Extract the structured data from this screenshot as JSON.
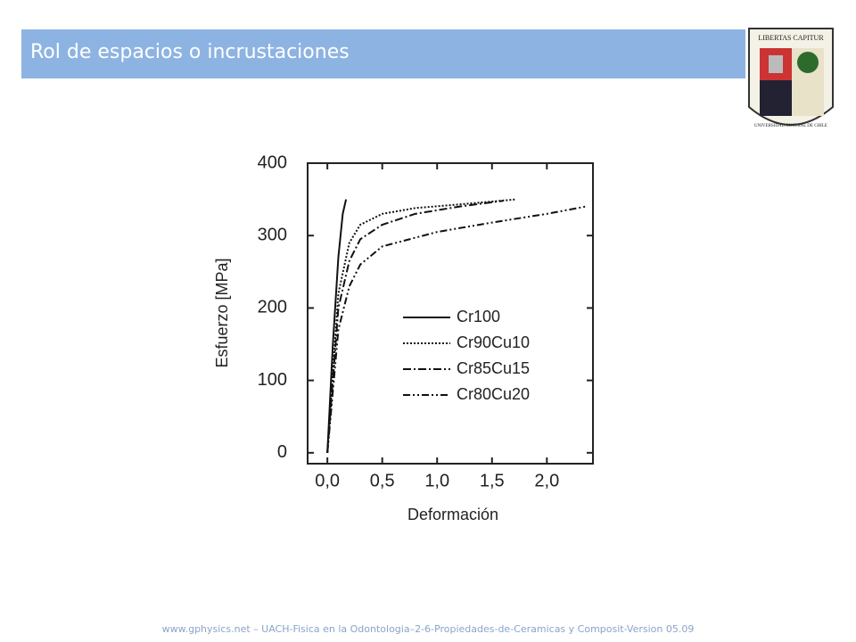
{
  "header": {
    "title": "Rol de espacios o incrustaciones"
  },
  "logo": {
    "motto": "LIBERTAS CAPITUR",
    "name": "UNIVERSIDAD AUSTRAL DE CHILE"
  },
  "chart_data": {
    "type": "line",
    "xlabel": "Deformación",
    "ylabel": "Esfuerzo [MPa]",
    "xlim": [
      -0.18,
      2.42
    ],
    "ylim": [
      -15,
      400
    ],
    "xticks": [
      {
        "value": 0,
        "label": "0,0"
      },
      {
        "value": 0.5,
        "label": "0,5"
      },
      {
        "value": 1,
        "label": "1,0"
      },
      {
        "value": 1.5,
        "label": "1,5"
      },
      {
        "value": 2,
        "label": "2,0"
      }
    ],
    "yticks": [
      0,
      100,
      200,
      300,
      400
    ],
    "legend": "lower right",
    "series": [
      {
        "name": "Cr100",
        "color": "#111111",
        "dash": "solid",
        "x": [
          0,
          0.05,
          0.1,
          0.14,
          0.17
        ],
        "values": [
          0,
          150,
          270,
          330,
          350
        ]
      },
      {
        "name": "Cr90Cu10",
        "color": "#111111",
        "dash": "dotted",
        "x": [
          0,
          0.1,
          0.2,
          0.3,
          0.5,
          0.8,
          1.2,
          1.72
        ],
        "values": [
          0,
          220,
          290,
          315,
          330,
          338,
          343,
          350
        ]
      },
      {
        "name": "Cr85Cu15",
        "color": "#111111",
        "dash": "dashdot",
        "x": [
          0,
          0.1,
          0.2,
          0.3,
          0.5,
          0.8,
          1.2,
          1.6
        ],
        "values": [
          0,
          200,
          265,
          295,
          315,
          330,
          340,
          348
        ]
      },
      {
        "name": "Cr80Cu20",
        "color": "#111111",
        "dash": "dashdotdot",
        "x": [
          0,
          0.1,
          0.2,
          0.3,
          0.5,
          1.0,
          1.5,
          2.0,
          2.35
        ],
        "values": [
          0,
          170,
          230,
          260,
          285,
          305,
          318,
          330,
          340
        ]
      }
    ]
  },
  "footer": {
    "text": "www.gphysics.net – UACH-Fisica en la Odontologia–2-6-Propiedades-de-Ceramicas y Composit-Version 05.09"
  }
}
